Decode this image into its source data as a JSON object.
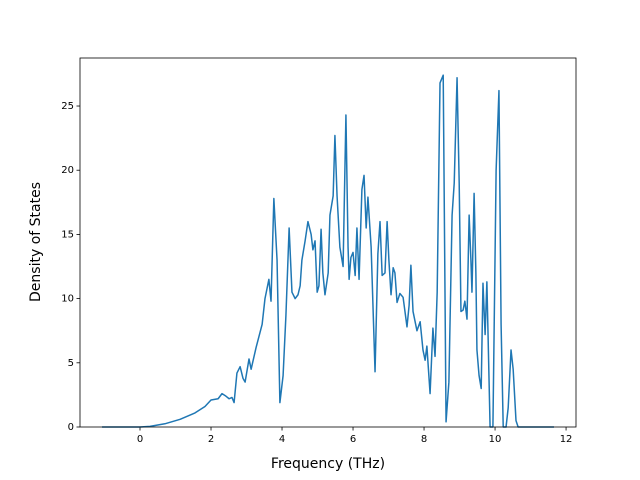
{
  "chart_data": {
    "type": "line",
    "xlabel": "Frequency (THz)",
    "ylabel": "Density of States",
    "x": [
      -1.07,
      0,
      0.28,
      0.7,
      1.13,
      1.55,
      1.83,
      2.0,
      2.2,
      2.31,
      2.42,
      2.51,
      2.59,
      2.65,
      2.73,
      2.82,
      2.9,
      2.96,
      3.07,
      3.13,
      3.27,
      3.44,
      3.52,
      3.63,
      3.69,
      3.77,
      3.86,
      3.94,
      4.03,
      4.11,
      4.2,
      4.28,
      4.37,
      4.45,
      4.51,
      4.56,
      4.65,
      4.73,
      4.82,
      4.87,
      4.93,
      4.99,
      5.04,
      5.1,
      5.15,
      5.21,
      5.3,
      5.35,
      5.44,
      5.49,
      5.55,
      5.63,
      5.72,
      5.8,
      5.86,
      5.89,
      5.94,
      6.0,
      6.06,
      6.11,
      6.17,
      6.25,
      6.31,
      6.37,
      6.42,
      6.51,
      6.62,
      6.7,
      6.76,
      6.82,
      6.9,
      6.96,
      7.01,
      7.07,
      7.13,
      7.18,
      7.24,
      7.32,
      7.41,
      7.52,
      7.58,
      7.63,
      7.69,
      7.8,
      7.89,
      7.97,
      8.03,
      8.08,
      8.17,
      8.25,
      8.31,
      8.37,
      8.45,
      8.54,
      8.62,
      8.7,
      8.79,
      8.85,
      8.93,
      8.99,
      9.04,
      9.1,
      9.15,
      9.21,
      9.27,
      9.32,
      9.35,
      9.41,
      9.46,
      9.49,
      9.55,
      9.61,
      9.66,
      9.72,
      9.77,
      9.86,
      9.94,
      10.03,
      10.11,
      10.17,
      10.23,
      10.31,
      10.37,
      10.45,
      10.51,
      10.59,
      10.65,
      11.66
    ],
    "series": [
      {
        "color": "#1f77b4",
        "values": [
          0,
          0,
          0.05,
          0.25,
          0.6,
          1.1,
          1.6,
          2.1,
          2.2,
          2.6,
          2.4,
          2.2,
          2.3,
          1.9,
          4.2,
          4.7,
          3.8,
          3.5,
          5.3,
          4.5,
          6.2,
          8,
          10,
          11.5,
          9.8,
          17.8,
          13,
          1.9,
          4,
          8.7,
          15.5,
          10.5,
          10,
          10.3,
          11,
          13,
          14.5,
          16,
          15,
          13.8,
          14.5,
          10.5,
          11,
          15.4,
          12,
          10.3,
          12,
          16.5,
          18,
          22.7,
          18,
          14,
          12.5,
          24.3,
          14,
          11.5,
          13.2,
          13.6,
          11.8,
          15.5,
          11.5,
          18.5,
          19.6,
          15.5,
          17.9,
          14,
          4.3,
          13.5,
          16,
          11.8,
          12,
          16,
          13,
          10.3,
          12.4,
          12,
          9.7,
          10.4,
          10.1,
          7.8,
          9.5,
          12.6,
          9,
          7.5,
          8.2,
          6,
          5.2,
          6.3,
          2.6,
          7.7,
          5.5,
          10.5,
          26.8,
          27.4,
          0.4,
          3.5,
          16.5,
          19,
          27.2,
          19,
          9,
          9.1,
          9.8,
          8.4,
          16.5,
          13,
          10.5,
          18.2,
          12,
          6,
          4,
          3,
          11.2,
          7.2,
          11.3,
          0,
          0,
          20,
          26.2,
          8,
          0,
          0,
          1.5,
          6,
          4.5,
          0.5,
          0,
          0
        ]
      }
    ],
    "xlim": [
      -1.69,
      12.28
    ],
    "xticks": [
      0,
      2,
      4,
      6,
      8,
      10,
      12
    ],
    "ylim": [
      0,
      28.74
    ],
    "yticks": [
      0,
      5,
      10,
      15,
      20,
      25
    ]
  }
}
